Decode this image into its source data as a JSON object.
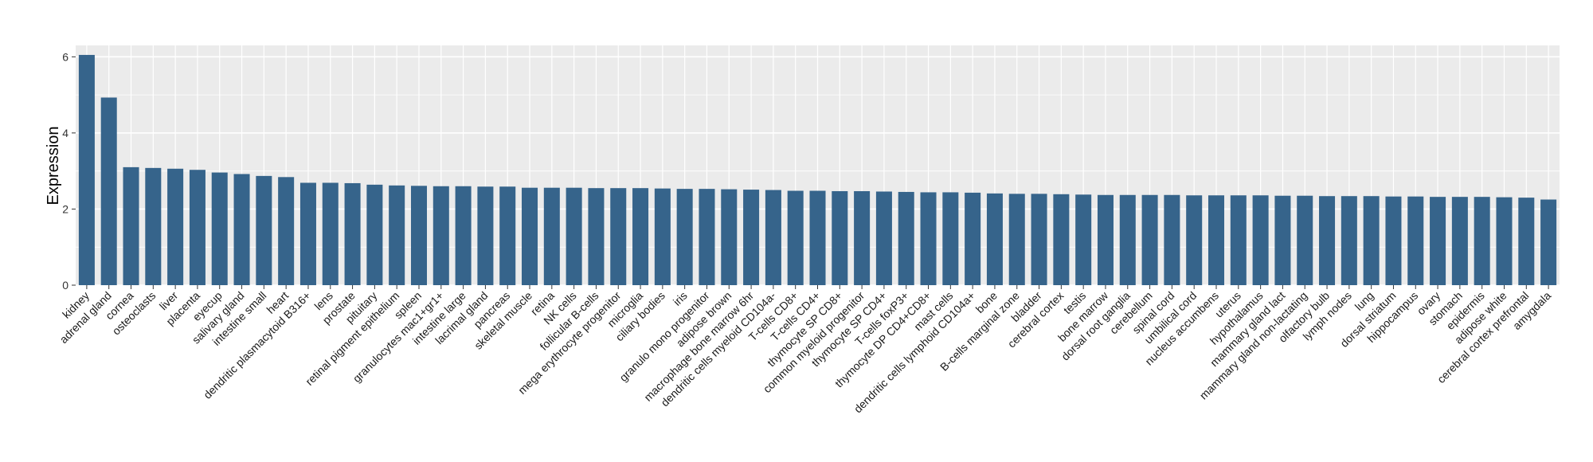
{
  "chart_data": {
    "type": "bar",
    "title": "",
    "xlabel": "",
    "ylabel": "Expression",
    "ylim": [
      0,
      6.3
    ],
    "yticks": [
      0,
      2,
      4,
      6
    ],
    "grid": true,
    "bar_color": "#36648B",
    "panel_background": "#EBEBEB",
    "grid_color": "#FFFFFF",
    "categories": [
      "kidney",
      "adrenal gland",
      "cornea",
      "osteoclasts",
      "liver",
      "placenta",
      "eyecup",
      "salivary gland",
      "intestine small",
      "heart",
      "dendritic plasmacytoid B316+",
      "lens",
      "prostate",
      "pituitary",
      "retinal pigment epithelium",
      "spleen",
      "granulocytes mac1+gr1+",
      "intestine large",
      "lacrimal gland",
      "pancreas",
      "skeletal muscle",
      "retina",
      "NK cells",
      "follicular B-cells",
      "mega erythrocyte progenitor",
      "microglia",
      "ciliary bodies",
      "iris",
      "granulo mono progenitor",
      "adipose brown",
      "macrophage bone marrow 6hr",
      "dendritic cells myeloid CD104a-",
      "T-cells CD8+",
      "T-cells CD4+",
      "thymocyte SP CD8+",
      "common myeloid progenitor",
      "thymocyte SP CD4+",
      "T-cells foxP3+",
      "thymocyte DP CD4+CD8+",
      "mast cells",
      "dendritic cells lymphoid CD104a+",
      "bone",
      "B-cells marginal zone",
      "bladder",
      "cerebral cortex",
      "testis",
      "bone marrow",
      "dorsal root ganglia",
      "cerebellum",
      "spinal cord",
      "umbilical cord",
      "nucleus accumbens",
      "uterus",
      "hypothalamus",
      "mammary gland lact",
      "mammary gland non-lactating",
      "olfactory bulb",
      "lymph nodes",
      "lung",
      "dorsal striatum",
      "hippocampus",
      "ovary",
      "stomach",
      "epidermis",
      "adipose white",
      "cerebral cortex prefrontal",
      "amygdala"
    ],
    "values": [
      6.05,
      4.93,
      3.1,
      3.08,
      3.06,
      3.03,
      2.96,
      2.92,
      2.87,
      2.84,
      2.69,
      2.69,
      2.68,
      2.64,
      2.62,
      2.61,
      2.6,
      2.6,
      2.59,
      2.59,
      2.56,
      2.56,
      2.56,
      2.55,
      2.55,
      2.55,
      2.54,
      2.53,
      2.53,
      2.52,
      2.51,
      2.5,
      2.48,
      2.48,
      2.47,
      2.47,
      2.46,
      2.45,
      2.44,
      2.44,
      2.43,
      2.41,
      2.4,
      2.4,
      2.39,
      2.38,
      2.37,
      2.37,
      2.37,
      2.37,
      2.36,
      2.36,
      2.36,
      2.36,
      2.35,
      2.35,
      2.34,
      2.34,
      2.34,
      2.33,
      2.33,
      2.32,
      2.32,
      2.32,
      2.31,
      2.3,
      2.25
    ]
  }
}
